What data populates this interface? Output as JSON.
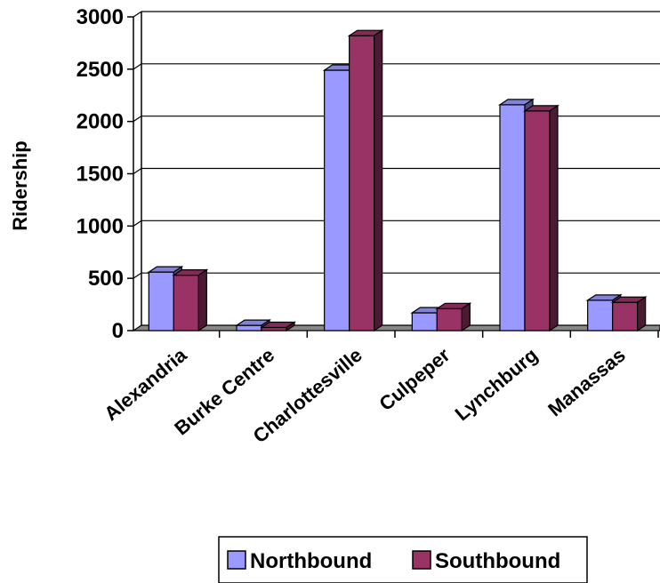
{
  "chart_data": {
    "type": "bar",
    "categories": [
      "Alexandria",
      "Burke Centre",
      "Charlottesville",
      "Culpeper",
      "Lynchburg",
      "Manassas"
    ],
    "series": [
      {
        "name": "Northbound",
        "values": [
          560,
          50,
          2490,
          170,
          2160,
          290
        ],
        "color": "#9999ff"
      },
      {
        "name": "Southbound",
        "values": [
          530,
          30,
          2820,
          210,
          2100,
          270
        ],
        "color": "#993366"
      }
    ],
    "ylabel": "Ridership",
    "ylim": [
      0,
      3000
    ],
    "yticks": [
      0,
      500,
      1000,
      1500,
      2000,
      2500,
      3000
    ],
    "grid": true,
    "legend": "bottom",
    "style": "3d-column"
  }
}
